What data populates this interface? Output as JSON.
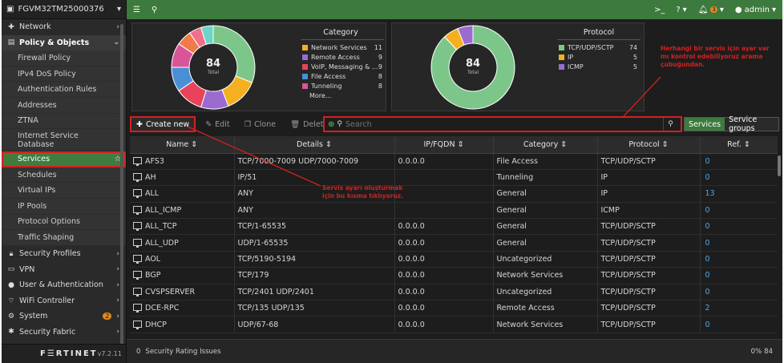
{
  "device": {
    "name": "FGVM32TM25000376"
  },
  "sidebar": {
    "top_items": [
      {
        "label": "Network",
        "icon": "network-icon"
      },
      {
        "label": "Policy & Objects",
        "icon": "policy-icon"
      }
    ],
    "sub_items": [
      "Firewall Policy",
      "IPv4 DoS Policy",
      "Authentication Rules",
      "Addresses",
      "ZTNA",
      "Internet Service Database",
      "Services",
      "Schedules",
      "Virtual IPs",
      "IP Pools",
      "Protocol Options",
      "Traffic Shaping"
    ],
    "bottom_items": [
      {
        "label": "Security Profiles",
        "icon": "lock-icon"
      },
      {
        "label": "VPN",
        "icon": "vpn-icon"
      },
      {
        "label": "User & Authentication",
        "icon": "user-icon"
      },
      {
        "label": "WiFi Controller",
        "icon": "wifi-icon"
      },
      {
        "label": "System",
        "icon": "gear-icon",
        "badge": "2"
      },
      {
        "label": "Security Fabric",
        "icon": "fabric-icon"
      }
    ],
    "logo": "F☰RTINET",
    "version": "v7.2.11"
  },
  "topbar": {
    "notifications": "3",
    "user": "admin"
  },
  "category_widget": {
    "title": "Category",
    "total": "84",
    "total_label": "Total",
    "more": "More...",
    "rows": [
      {
        "label": "Network Services",
        "count": "11",
        "color": "#f5b020"
      },
      {
        "label": "Remote Access",
        "count": "9",
        "color": "#9b6bd1"
      },
      {
        "label": "VoIP, Messaging & ...",
        "count": "9",
        "color": "#e8435a"
      },
      {
        "label": "File Access",
        "count": "8",
        "color": "#4a8fd4"
      },
      {
        "label": "Tunneling",
        "count": "8",
        "color": "#d9559a"
      }
    ],
    "slices": [
      {
        "value": 26,
        "color": "#7cc68a"
      },
      {
        "value": 11,
        "color": "#f5b020"
      },
      {
        "value": 9,
        "color": "#9b6bd1"
      },
      {
        "value": 9,
        "color": "#e8435a"
      },
      {
        "value": 8,
        "color": "#4a8fd4"
      },
      {
        "value": 8,
        "color": "#d9559a"
      },
      {
        "value": 5,
        "color": "#f07a4a"
      },
      {
        "value": 4,
        "color": "#f06f8a"
      },
      {
        "value": 4,
        "color": "#6fd3c8"
      }
    ]
  },
  "protocol_widget": {
    "title": "Protocol",
    "total": "84",
    "total_label": "Total",
    "rows": [
      {
        "label": "TCP/UDP/SCTP",
        "count": "74",
        "color": "#7cc68a"
      },
      {
        "label": "IP",
        "count": "5",
        "color": "#f5b020"
      },
      {
        "label": "ICMP",
        "count": "5",
        "color": "#9b6bd1"
      }
    ],
    "slices": [
      {
        "value": 74,
        "color": "#7cc68a"
      },
      {
        "value": 5,
        "color": "#f5b020"
      },
      {
        "value": 5,
        "color": "#9b6bd1"
      }
    ]
  },
  "toolbar": {
    "create_label": "Create new",
    "edit_label": "Edit",
    "clone_label": "Clone",
    "delete_label": "Delete",
    "search_placeholder": "Search",
    "view_services": "Services",
    "view_groups": "Service groups"
  },
  "table": {
    "columns": [
      "Name ⇕",
      "Details ⇕",
      "IP/FQDN ⇕",
      "Category ⇕",
      "Protocol ⇕",
      "Ref. ⇕"
    ],
    "rows": [
      [
        "AFS3",
        "TCP/7000-7009 UDP/7000-7009",
        "0.0.0.0",
        "File Access",
        "TCP/UDP/SCTP",
        "0"
      ],
      [
        "AH",
        "IP/51",
        "",
        "Tunneling",
        "IP",
        "0"
      ],
      [
        "ALL",
        "ANY",
        "",
        "General",
        "IP",
        "13"
      ],
      [
        "ALL_ICMP",
        "ANY",
        "",
        "General",
        "ICMP",
        "0"
      ],
      [
        "ALL_TCP",
        "TCP/1-65535",
        "0.0.0.0",
        "General",
        "TCP/UDP/SCTP",
        "0"
      ],
      [
        "ALL_UDP",
        "UDP/1-65535",
        "0.0.0.0",
        "General",
        "TCP/UDP/SCTP",
        "0"
      ],
      [
        "AOL",
        "TCP/5190-5194",
        "0.0.0.0",
        "Uncategorized",
        "TCP/UDP/SCTP",
        "0"
      ],
      [
        "BGP",
        "TCP/179",
        "0.0.0.0",
        "Network Services",
        "TCP/UDP/SCTP",
        "0"
      ],
      [
        "CVSPSERVER",
        "TCP/2401 UDP/2401",
        "0.0.0.0",
        "Uncategorized",
        "TCP/UDP/SCTP",
        "0"
      ],
      [
        "DCE-RPC",
        "TCP/135 UDP/135",
        "0.0.0.0",
        "Remote Access",
        "TCP/UDP/SCTP",
        "2"
      ],
      [
        "DHCP",
        "UDP/67-68",
        "0.0.0.0",
        "Network Services",
        "TCP/UDP/SCTP",
        "0"
      ]
    ]
  },
  "footer": {
    "rating": "Security Rating Issues",
    "zoom": "0%",
    "count": "84"
  },
  "annotations": {
    "note_create": [
      "Servis ayarı oluşturmak",
      "için bu kısma tıklıyoruz."
    ],
    "note_search": [
      "Herhangi bir servis için ayar var",
      "mı kontrol edebiliyoruz arama",
      "çubuğundan."
    ]
  }
}
